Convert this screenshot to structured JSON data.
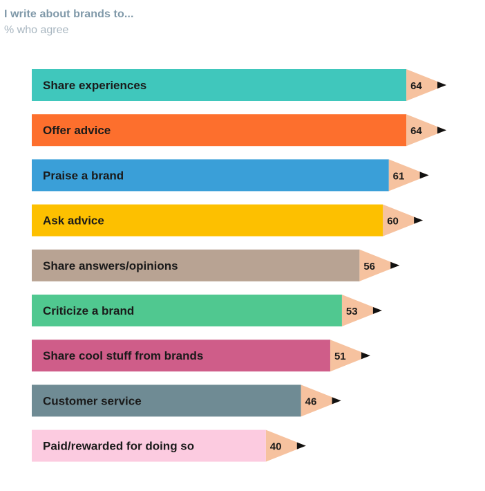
{
  "title": "I write about brands to...",
  "subtitle": "% who agree",
  "colors": {
    "pencil_tip": "#f6c29f",
    "pencil_lead": "#111111"
  },
  "chart_data": {
    "type": "bar",
    "orientation": "horizontal",
    "title": "I write about brands to...",
    "subtitle": "% who agree",
    "categories": [
      "Share experiences",
      "Offer advice",
      "Praise a brand",
      "Ask advice",
      "Share answers/opinions",
      "Criticize a brand",
      "Share cool stuff from brands",
      "Customer service",
      "Paid/rewarded for doing so"
    ],
    "values": [
      64,
      64,
      61,
      60,
      56,
      53,
      51,
      46,
      40
    ],
    "bar_colors": [
      "#40c7bc",
      "#fd6f2d",
      "#3a9fd8",
      "#fdc000",
      "#b8a393",
      "#50c890",
      "#cf5d89",
      "#6f8b94",
      "#fccbe0"
    ],
    "grid": false,
    "legend": "none"
  }
}
